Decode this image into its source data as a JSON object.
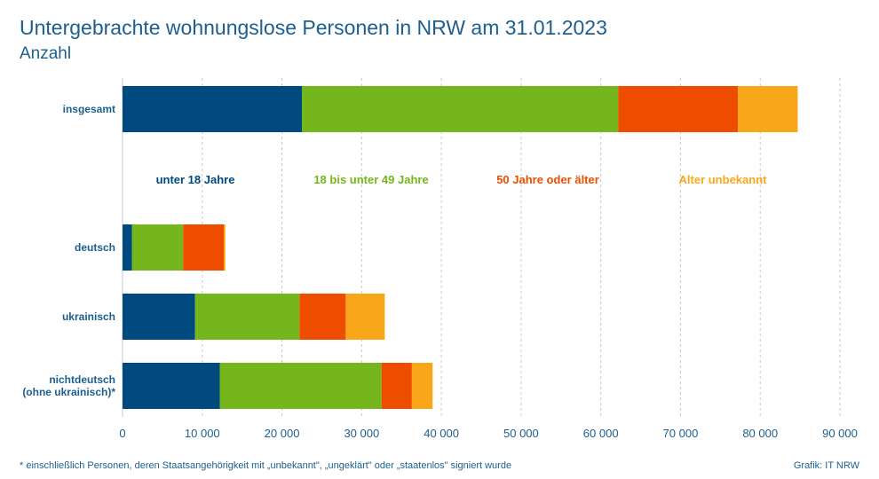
{
  "header": {
    "title": "Untergebrachte wohnungslose Personen in NRW am 31.01.2023",
    "subtitle": "Anzahl"
  },
  "footer": {
    "footnote": "* einschließlich Personen, deren Staatsangehörigkeit mit „unbekannt\", „ungeklärt\" oder „staatenlos\" signiert wurde",
    "source": "Grafik: IT NRW"
  },
  "colors": {
    "text": "#1c5f8f",
    "grid": "#c8c8c8"
  },
  "chart_data": {
    "type": "bar",
    "orientation": "horizontal",
    "stacked": true,
    "categories": [
      "insgesamt",
      "deutsch",
      "ukrainisch",
      "nichtdeutsch\n(ohne ukrainisch)*"
    ],
    "series": [
      {
        "name": "unter 18 Jahre",
        "color": "#004a80",
        "values": [
          22500,
          1200,
          9100,
          12200
        ]
      },
      {
        "name": "18 bis unter 49 Jahre",
        "color": "#74b61b",
        "values": [
          39700,
          6400,
          13100,
          20300
        ]
      },
      {
        "name": "50 Jahre oder älter",
        "color": "#ee4d00",
        "values": [
          15000,
          5100,
          5800,
          3800
        ]
      },
      {
        "name": "Alter unbekannt",
        "color": "#faa61a",
        "values": [
          7500,
          200,
          4900,
          2600
        ]
      }
    ],
    "xlim": [
      0,
      90000
    ],
    "xticks": [
      0,
      10000,
      20000,
      30000,
      40000,
      50000,
      60000,
      70000,
      80000,
      90000
    ],
    "xtick_labels": [
      "0",
      "10 000",
      "20 000",
      "30 000",
      "40 000",
      "50 000",
      "60 000",
      "70 000",
      "80 000",
      "90 000"
    ],
    "grid": true,
    "legend_position": "middle, between first bar and remaining bars"
  }
}
